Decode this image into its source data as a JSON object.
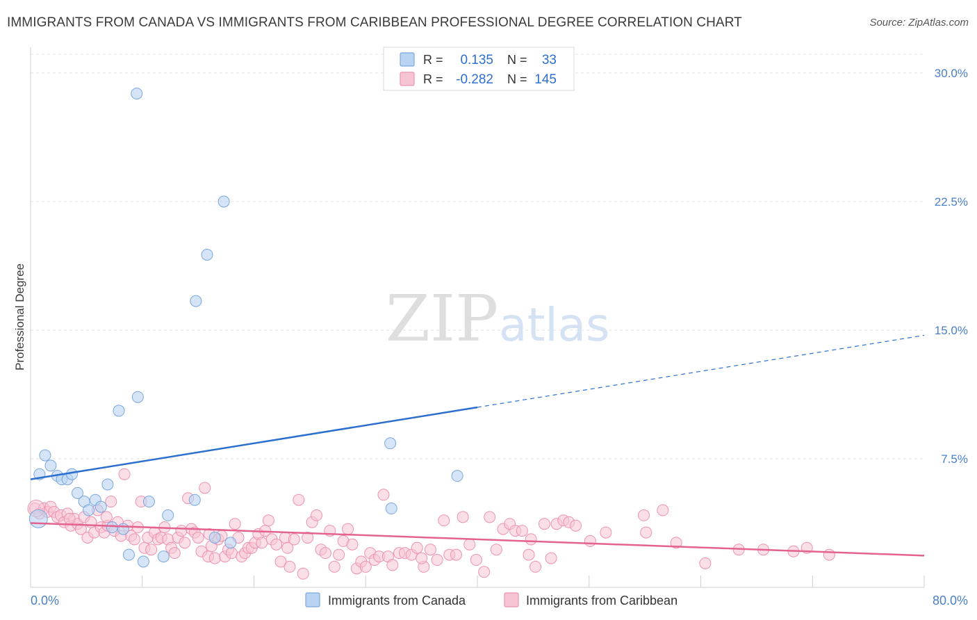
{
  "header": {
    "title": "IMMIGRANTS FROM CANADA VS IMMIGRANTS FROM CARIBBEAN PROFESSIONAL DEGREE CORRELATION CHART",
    "source": "Source: ZipAtlas.com"
  },
  "watermark": {
    "zip": "ZIP",
    "atlas": "atlas"
  },
  "colors": {
    "canada_fill": "#b9d3f2",
    "canada_stroke": "#7aa7dd",
    "canada_line": "#2c6fcf",
    "caribbean_fill": "#f7c4d4",
    "caribbean_stroke": "#ec92b0",
    "caribbean_line": "#e3628f",
    "axis_text": "#4a7fc8",
    "grid": "#e2e2e2"
  },
  "legend": {
    "rows": [
      {
        "r_label": "R =",
        "r_value": "0.135",
        "n_label": "N =",
        "n_value": "33"
      },
      {
        "r_label": "R =",
        "r_value": "-0.282",
        "n_label": "N =",
        "n_value": "145"
      }
    ]
  },
  "bottom_legend": {
    "canada": "Immigrants from Canada",
    "caribbean": "Immigrants from Caribbean"
  },
  "chart_data": {
    "type": "scatter",
    "title": "IMMIGRANTS FROM CANADA VS IMMIGRANTS FROM CARIBBEAN PROFESSIONAL DEGREE CORRELATION CHART",
    "xlabel": "",
    "ylabel": "Professional Degree",
    "xlim": [
      0,
      80
    ],
    "ylim": [
      0,
      31.5
    ],
    "x_tick_labels": [
      "0.0%",
      "80.0%"
    ],
    "y_ticks": [
      7.5,
      15.0,
      22.5,
      30.0
    ],
    "y_tick_labels": [
      "7.5%",
      "15.0%",
      "22.5%",
      "30.0%"
    ],
    "grid": true,
    "series": [
      {
        "name": "Immigrants from Canada",
        "R": 0.135,
        "N": 33,
        "trend": {
          "x0": 0,
          "y0": 6.3,
          "x1": 40,
          "y1": 10.5,
          "dash_to_x": 80,
          "dash_to_y": 14.7
        },
        "points": [
          [
            0.7,
            4.0
          ],
          [
            0.8,
            6.6
          ],
          [
            1.3,
            7.7
          ],
          [
            1.8,
            7.1
          ],
          [
            2.4,
            6.5
          ],
          [
            2.8,
            6.3
          ],
          [
            3.3,
            6.3
          ],
          [
            3.7,
            6.6
          ],
          [
            4.2,
            5.5
          ],
          [
            4.8,
            5.0
          ],
          [
            5.2,
            4.5
          ],
          [
            5.8,
            5.1
          ],
          [
            6.3,
            4.7
          ],
          [
            6.9,
            6.0
          ],
          [
            7.3,
            3.5
          ],
          [
            7.9,
            10.3
          ],
          [
            8.3,
            3.4
          ],
          [
            8.8,
            1.9
          ],
          [
            9.5,
            28.8
          ],
          [
            9.6,
            11.1
          ],
          [
            10.1,
            1.5
          ],
          [
            10.6,
            5.0
          ],
          [
            11.9,
            1.8
          ],
          [
            12.3,
            4.2
          ],
          [
            14.7,
            5.1
          ],
          [
            14.8,
            16.7
          ],
          [
            15.8,
            19.4
          ],
          [
            16.5,
            2.9
          ],
          [
            17.3,
            22.5
          ],
          [
            17.9,
            2.6
          ],
          [
            32.2,
            8.4
          ],
          [
            32.3,
            4.6
          ],
          [
            38.2,
            6.5
          ]
        ]
      },
      {
        "name": "Immigrants from Caribbean",
        "R": -0.282,
        "N": 145,
        "trend": {
          "x0": 0,
          "y0": 3.75,
          "x1": 80,
          "y1": 1.85
        },
        "points": [
          [
            0.4,
            4.6
          ],
          [
            0.8,
            4.3
          ],
          [
            1.2,
            4.6
          ],
          [
            1.5,
            4.4
          ],
          [
            1.8,
            4.7
          ],
          [
            2.1,
            4.4
          ],
          [
            2.4,
            4.1
          ],
          [
            2.7,
            4.2
          ],
          [
            3.0,
            3.8
          ],
          [
            3.3,
            4.3
          ],
          [
            3.6,
            3.6
          ],
          [
            3.9,
            4.0
          ],
          [
            4.2,
            3.7
          ],
          [
            4.5,
            3.4
          ],
          [
            4.8,
            4.1
          ],
          [
            5.1,
            2.9
          ],
          [
            5.4,
            3.8
          ],
          [
            5.7,
            3.2
          ],
          [
            6.0,
            4.5
          ],
          [
            6.3,
            3.5
          ],
          [
            6.6,
            3.2
          ],
          [
            6.9,
            3.6
          ],
          [
            7.2,
            5.0
          ],
          [
            7.5,
            3.3
          ],
          [
            7.8,
            3.8
          ],
          [
            8.1,
            3.0
          ],
          [
            8.4,
            6.6
          ],
          [
            8.7,
            3.6
          ],
          [
            9.0,
            3.0
          ],
          [
            9.3,
            2.8
          ],
          [
            9.6,
            3.5
          ],
          [
            9.9,
            5.0
          ],
          [
            10.2,
            2.3
          ],
          [
            10.5,
            2.9
          ],
          [
            10.8,
            2.2
          ],
          [
            11.1,
            3.2
          ],
          [
            11.4,
            2.8
          ],
          [
            11.7,
            2.9
          ],
          [
            12.0,
            3.5
          ],
          [
            12.3,
            2.8
          ],
          [
            12.6,
            2.3
          ],
          [
            12.9,
            2.0
          ],
          [
            13.2,
            2.9
          ],
          [
            13.5,
            3.3
          ],
          [
            13.8,
            2.6
          ],
          [
            14.1,
            5.2
          ],
          [
            14.4,
            3.4
          ],
          [
            14.7,
            3.2
          ],
          [
            15.0,
            2.9
          ],
          [
            15.3,
            2.1
          ],
          [
            15.6,
            5.8
          ],
          [
            15.9,
            1.8
          ],
          [
            16.2,
            2.4
          ],
          [
            16.5,
            1.7
          ],
          [
            16.8,
            2.8
          ],
          [
            17.1,
            3.0
          ],
          [
            17.4,
            1.8
          ],
          [
            17.7,
            2.2
          ],
          [
            18.0,
            2.0
          ],
          [
            18.3,
            3.7
          ],
          [
            18.6,
            2.9
          ],
          [
            18.9,
            1.8
          ],
          [
            19.2,
            2.0
          ],
          [
            19.5,
            2.3
          ],
          [
            19.8,
            2.3
          ],
          [
            20.1,
            2.6
          ],
          [
            20.4,
            3.1
          ],
          [
            20.7,
            2.6
          ],
          [
            21.0,
            3.3
          ],
          [
            21.3,
            3.9
          ],
          [
            21.6,
            2.8
          ],
          [
            22.0,
            2.5
          ],
          [
            22.4,
            1.5
          ],
          [
            22.8,
            2.9
          ],
          [
            23.2,
            1.2
          ],
          [
            23.6,
            2.8
          ],
          [
            24.0,
            5.1
          ],
          [
            24.4,
            0.8
          ],
          [
            24.8,
            2.9
          ],
          [
            25.2,
            3.8
          ],
          [
            25.6,
            4.2
          ],
          [
            26.0,
            2.2
          ],
          [
            26.4,
            2.0
          ],
          [
            26.8,
            3.3
          ],
          [
            27.2,
            1.2
          ],
          [
            27.6,
            1.9
          ],
          [
            28.0,
            2.7
          ],
          [
            28.4,
            3.4
          ],
          [
            28.8,
            2.5
          ],
          [
            29.2,
            1.1
          ],
          [
            29.6,
            1.5
          ],
          [
            30.0,
            1.2
          ],
          [
            30.4,
            2.0
          ],
          [
            30.8,
            1.6
          ],
          [
            31.2,
            1.8
          ],
          [
            31.6,
            5.4
          ],
          [
            32.0,
            1.8
          ],
          [
            32.4,
            1.3
          ],
          [
            33.0,
            2.0
          ],
          [
            33.5,
            2.0
          ],
          [
            34.1,
            1.9
          ],
          [
            34.6,
            2.3
          ],
          [
            35.2,
            1.2
          ],
          [
            35.8,
            2.2
          ],
          [
            36.4,
            1.6
          ],
          [
            37.0,
            3.9
          ],
          [
            37.5,
            1.9
          ],
          [
            38.1,
            1.9
          ],
          [
            38.7,
            4.1
          ],
          [
            39.3,
            2.5
          ],
          [
            39.9,
            1.6
          ],
          [
            40.6,
            0.9
          ],
          [
            41.1,
            4.1
          ],
          [
            41.7,
            2.2
          ],
          [
            42.3,
            3.4
          ],
          [
            42.9,
            3.7
          ],
          [
            43.4,
            3.3
          ],
          [
            44.0,
            3.3
          ],
          [
            44.6,
            1.9
          ],
          [
            45.2,
            1.2
          ],
          [
            46.0,
            3.7
          ],
          [
            46.6,
            1.7
          ],
          [
            47.1,
            3.7
          ],
          [
            47.7,
            3.9
          ],
          [
            48.2,
            3.8
          ],
          [
            48.8,
            3.6
          ],
          [
            50.1,
            2.7
          ],
          [
            51.5,
            3.2
          ],
          [
            54.9,
            4.2
          ],
          [
            55.1,
            3.2
          ],
          [
            56.6,
            4.5
          ],
          [
            57.8,
            2.6
          ],
          [
            60.4,
            1.4
          ],
          [
            63.4,
            2.2
          ],
          [
            65.6,
            2.2
          ],
          [
            68.3,
            2.1
          ],
          [
            69.5,
            2.3
          ],
          [
            71.5,
            1.9
          ],
          [
            3.5,
            4.0
          ],
          [
            6.8,
            4.1
          ],
          [
            16.0,
            3.1
          ],
          [
            23.0,
            2.3
          ],
          [
            35.0,
            1.7
          ],
          [
            44.8,
            2.8
          ]
        ]
      }
    ]
  }
}
